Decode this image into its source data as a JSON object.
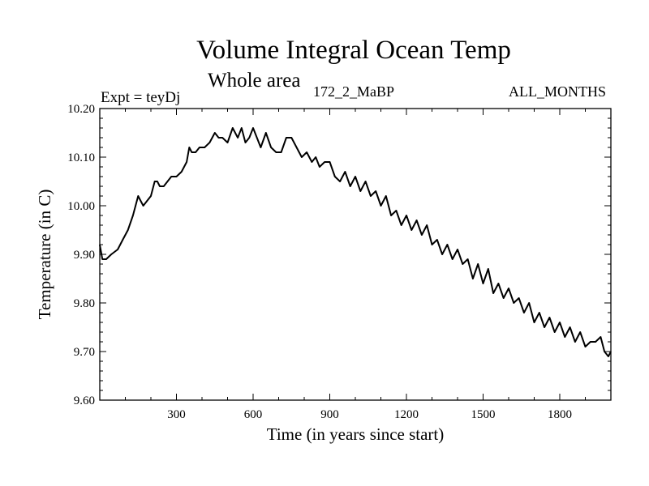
{
  "chart_data": {
    "type": "line",
    "title": "Volume Integral Ocean Temp",
    "subtitle": "Whole area",
    "annotations": {
      "left": "Expt = teyDj",
      "center": "172_2_MaBP",
      "right": "ALL_MONTHS"
    },
    "xlabel": "Time (in years since start)",
    "ylabel": "Temperature (in C)",
    "xlim": [
      0,
      2000
    ],
    "ylim": [
      9.6,
      10.2
    ],
    "xticks": [
      300,
      600,
      900,
      1200,
      1500,
      1800
    ],
    "xtick_labels": [
      "300",
      "600",
      "900",
      "1200",
      "1500",
      "1800"
    ],
    "yticks": [
      9.6,
      9.7,
      9.8,
      9.9,
      10.0,
      10.1,
      10.2
    ],
    "ytick_labels": [
      "9.60",
      "9.70",
      "9.80",
      "9.90",
      "10.00",
      "10.10",
      "10.20"
    ],
    "series": [
      {
        "name": "Volume integral ocean temperature",
        "x": [
          0,
          10,
          25,
          45,
          70,
          90,
          110,
          130,
          150,
          160,
          170,
          185,
          200,
          215,
          225,
          235,
          250,
          265,
          280,
          300,
          320,
          340,
          350,
          360,
          375,
          390,
          410,
          430,
          450,
          465,
          480,
          500,
          520,
          540,
          555,
          570,
          585,
          600,
          615,
          630,
          650,
          670,
          690,
          710,
          730,
          750,
          770,
          790,
          810,
          830,
          845,
          860,
          880,
          900,
          920,
          940,
          960,
          980,
          1000,
          1020,
          1040,
          1060,
          1080,
          1100,
          1120,
          1140,
          1160,
          1180,
          1200,
          1220,
          1240,
          1260,
          1280,
          1300,
          1320,
          1340,
          1360,
          1380,
          1400,
          1420,
          1440,
          1460,
          1480,
          1500,
          1520,
          1540,
          1560,
          1580,
          1600,
          1620,
          1640,
          1660,
          1680,
          1700,
          1720,
          1740,
          1760,
          1780,
          1800,
          1820,
          1840,
          1860,
          1880,
          1900,
          1920,
          1940,
          1960,
          1975,
          1990,
          2000
        ],
        "values": [
          9.92,
          9.89,
          9.89,
          9.9,
          9.91,
          9.93,
          9.95,
          9.98,
          10.02,
          10.01,
          10.0,
          10.01,
          10.02,
          10.05,
          10.05,
          10.04,
          10.04,
          10.05,
          10.06,
          10.06,
          10.07,
          10.09,
          10.12,
          10.11,
          10.11,
          10.12,
          10.12,
          10.13,
          10.15,
          10.14,
          10.14,
          10.13,
          10.16,
          10.14,
          10.16,
          10.13,
          10.14,
          10.16,
          10.14,
          10.12,
          10.15,
          10.12,
          10.11,
          10.11,
          10.14,
          10.14,
          10.12,
          10.1,
          10.11,
          10.09,
          10.1,
          10.08,
          10.09,
          10.09,
          10.06,
          10.05,
          10.07,
          10.04,
          10.06,
          10.03,
          10.05,
          10.02,
          10.03,
          10.0,
          10.02,
          9.98,
          9.99,
          9.96,
          9.98,
          9.95,
          9.97,
          9.94,
          9.96,
          9.92,
          9.93,
          9.9,
          9.92,
          9.89,
          9.91,
          9.88,
          9.89,
          9.85,
          9.88,
          9.84,
          9.87,
          9.82,
          9.84,
          9.81,
          9.83,
          9.8,
          9.81,
          9.78,
          9.8,
          9.76,
          9.78,
          9.75,
          9.77,
          9.74,
          9.76,
          9.73,
          9.75,
          9.72,
          9.74,
          9.71,
          9.72,
          9.72,
          9.73,
          9.7,
          9.69,
          9.7
        ]
      }
    ]
  }
}
